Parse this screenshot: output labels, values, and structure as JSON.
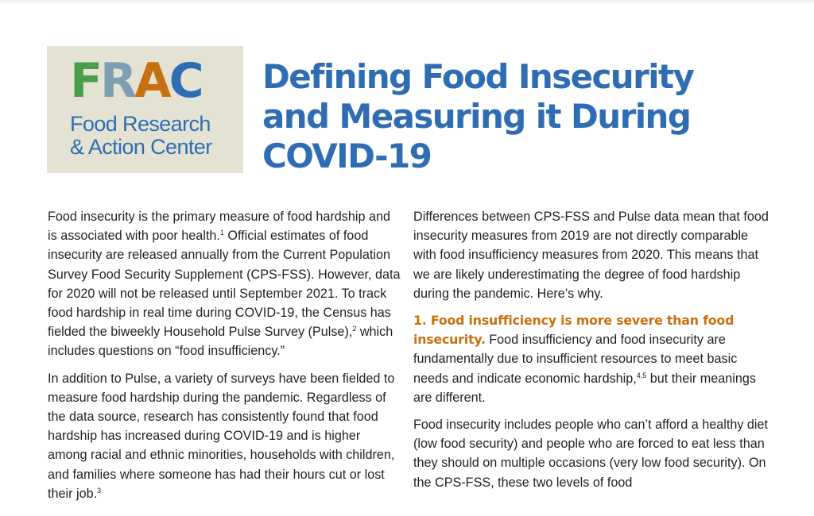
{
  "colors": {
    "logo_background": "#e4e3d3",
    "logo_F": "#4a9e4a",
    "logo_R": "#7f9fb4",
    "logo_A": "#c8700f",
    "logo_C": "#2e6db4",
    "logo_text": "#2e6db4",
    "title": "#2e6db4",
    "subheading": "#c8700f",
    "body_text": "#231f20"
  },
  "logo": {
    "letters": [
      "F",
      "R",
      "A",
      "C"
    ],
    "line1": "Food Research",
    "line2": "& Action Center"
  },
  "title": {
    "line1": "Defining Food Insecurity",
    "line2": "and Measuring it During",
    "line3": "COVID-19"
  },
  "left_column": {
    "para1": {
      "t1": "Food insecurity is the primary measure of food hardship and is associated with poor health.",
      "fn1": "1",
      "t2": " Official estimates of food insecurity are released annually from the Current Population Survey Food Security Supplement (CPS-FSS). However, data for 2020 will not be released until September 2021. To track food hardship in real time during COVID-19, the Census has fielded the biweekly Household Pulse Survey (Pulse),",
      "fn2": "2",
      "t3": " which includes questions on “food insufficiency.”"
    },
    "para2": {
      "t1": "In addition to Pulse, a variety of surveys have been fielded to measure food hardship during the pandemic. Regardless of the data source, research has consistently found that food hardship has increased during COVID-19 and is higher among racial and ethnic minorities, households with children, and families where someone has had their hours cut or lost their job.",
      "fn3": "3"
    }
  },
  "right_column": {
    "para1": "Differences between CPS-FSS and Pulse data mean that food insecurity measures from 2019 are not directly comparable with food insufficiency measures from 2020. This means that we are likely underestimating the degree of food hardship during the pandemic. Here’s why.",
    "section1": {
      "heading": "1. Food insufficiency is more severe than food insecurity.",
      "t1": " Food insufficiency and food insecurity are fundamentally due to insufficient resources to meet basic needs and indicate economic hardship,",
      "fn": "4,5",
      "t2": " but their meanings are different."
    },
    "para3": "Food insecurity includes people who can’t afford a healthy diet (low food security) and people who are forced to eat less than they should on multiple occasions (very low food security). On the CPS-FSS, these two levels of food"
  }
}
